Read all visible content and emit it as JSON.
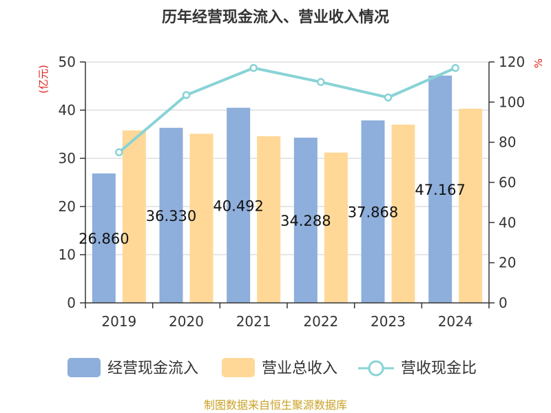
{
  "chart_data": {
    "type": "bar",
    "title": "历年经营现金流入、营业收入情况",
    "categories": [
      "2019",
      "2020",
      "2021",
      "2022",
      "2023",
      "2024"
    ],
    "y_left": {
      "unit": "(亿元)",
      "ylim": [
        0,
        50
      ],
      "ticks": [
        0,
        10,
        20,
        30,
        40,
        50
      ]
    },
    "y_right": {
      "unit": "%",
      "ylim": [
        0,
        120
      ],
      "ticks": [
        0,
        20,
        40,
        60,
        80,
        100,
        120
      ]
    },
    "series": [
      {
        "name": "经营现金流入",
        "type": "bar",
        "axis": "left",
        "color": "#8eaedb",
        "values": [
          26.86,
          36.33,
          40.49,
          34.29,
          37.87,
          47.17
        ],
        "labels": [
          "26.860",
          "36.330",
          "40.492",
          "34.288",
          "37.868",
          "47.167"
        ]
      },
      {
        "name": "营业总收入",
        "type": "bar",
        "axis": "left",
        "color": "#ffd898",
        "values": [
          35.8,
          35.1,
          34.6,
          31.2,
          37.0,
          40.3
        ]
      },
      {
        "name": "营收现金比",
        "type": "line",
        "axis": "right",
        "color": "#88d3d6",
        "values": [
          75.0,
          103.5,
          117.0,
          110.0,
          102.3,
          117.0
        ]
      }
    ],
    "grid": true,
    "legend_position": "bottom"
  },
  "source": "制图数据来自恒生聚源数据库"
}
